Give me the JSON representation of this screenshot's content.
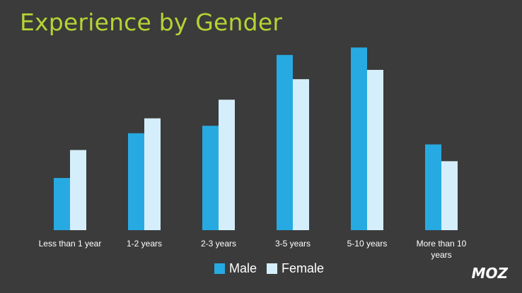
{
  "title": "Experience by Gender",
  "logo": "MOZ",
  "colors": {
    "background": "#3b3b3b",
    "title": "#b5d334",
    "male": "#27aae1",
    "female": "#d5eefb",
    "text": "#ffffff"
  },
  "chart_data": {
    "type": "bar",
    "title": "Experience by Gender",
    "xlabel": "",
    "ylabel": "",
    "ylim": [
      0,
      100
    ],
    "grid": false,
    "legend_position": "bottom",
    "categories": [
      [
        "Less than 1 year"
      ],
      [
        "1-2 years"
      ],
      [
        "2-3 years"
      ],
      [
        "3-5 years"
      ],
      [
        "5-10 years"
      ],
      [
        "More than 10",
        "years"
      ]
    ],
    "series": [
      {
        "name": "Male",
        "color": "#27aae1",
        "values": [
          28,
          52,
          56,
          94,
          98,
          46
        ]
      },
      {
        "name": "Female",
        "color": "#d5eefb",
        "values": [
          43,
          60,
          70,
          81,
          86,
          37
        ]
      }
    ]
  }
}
